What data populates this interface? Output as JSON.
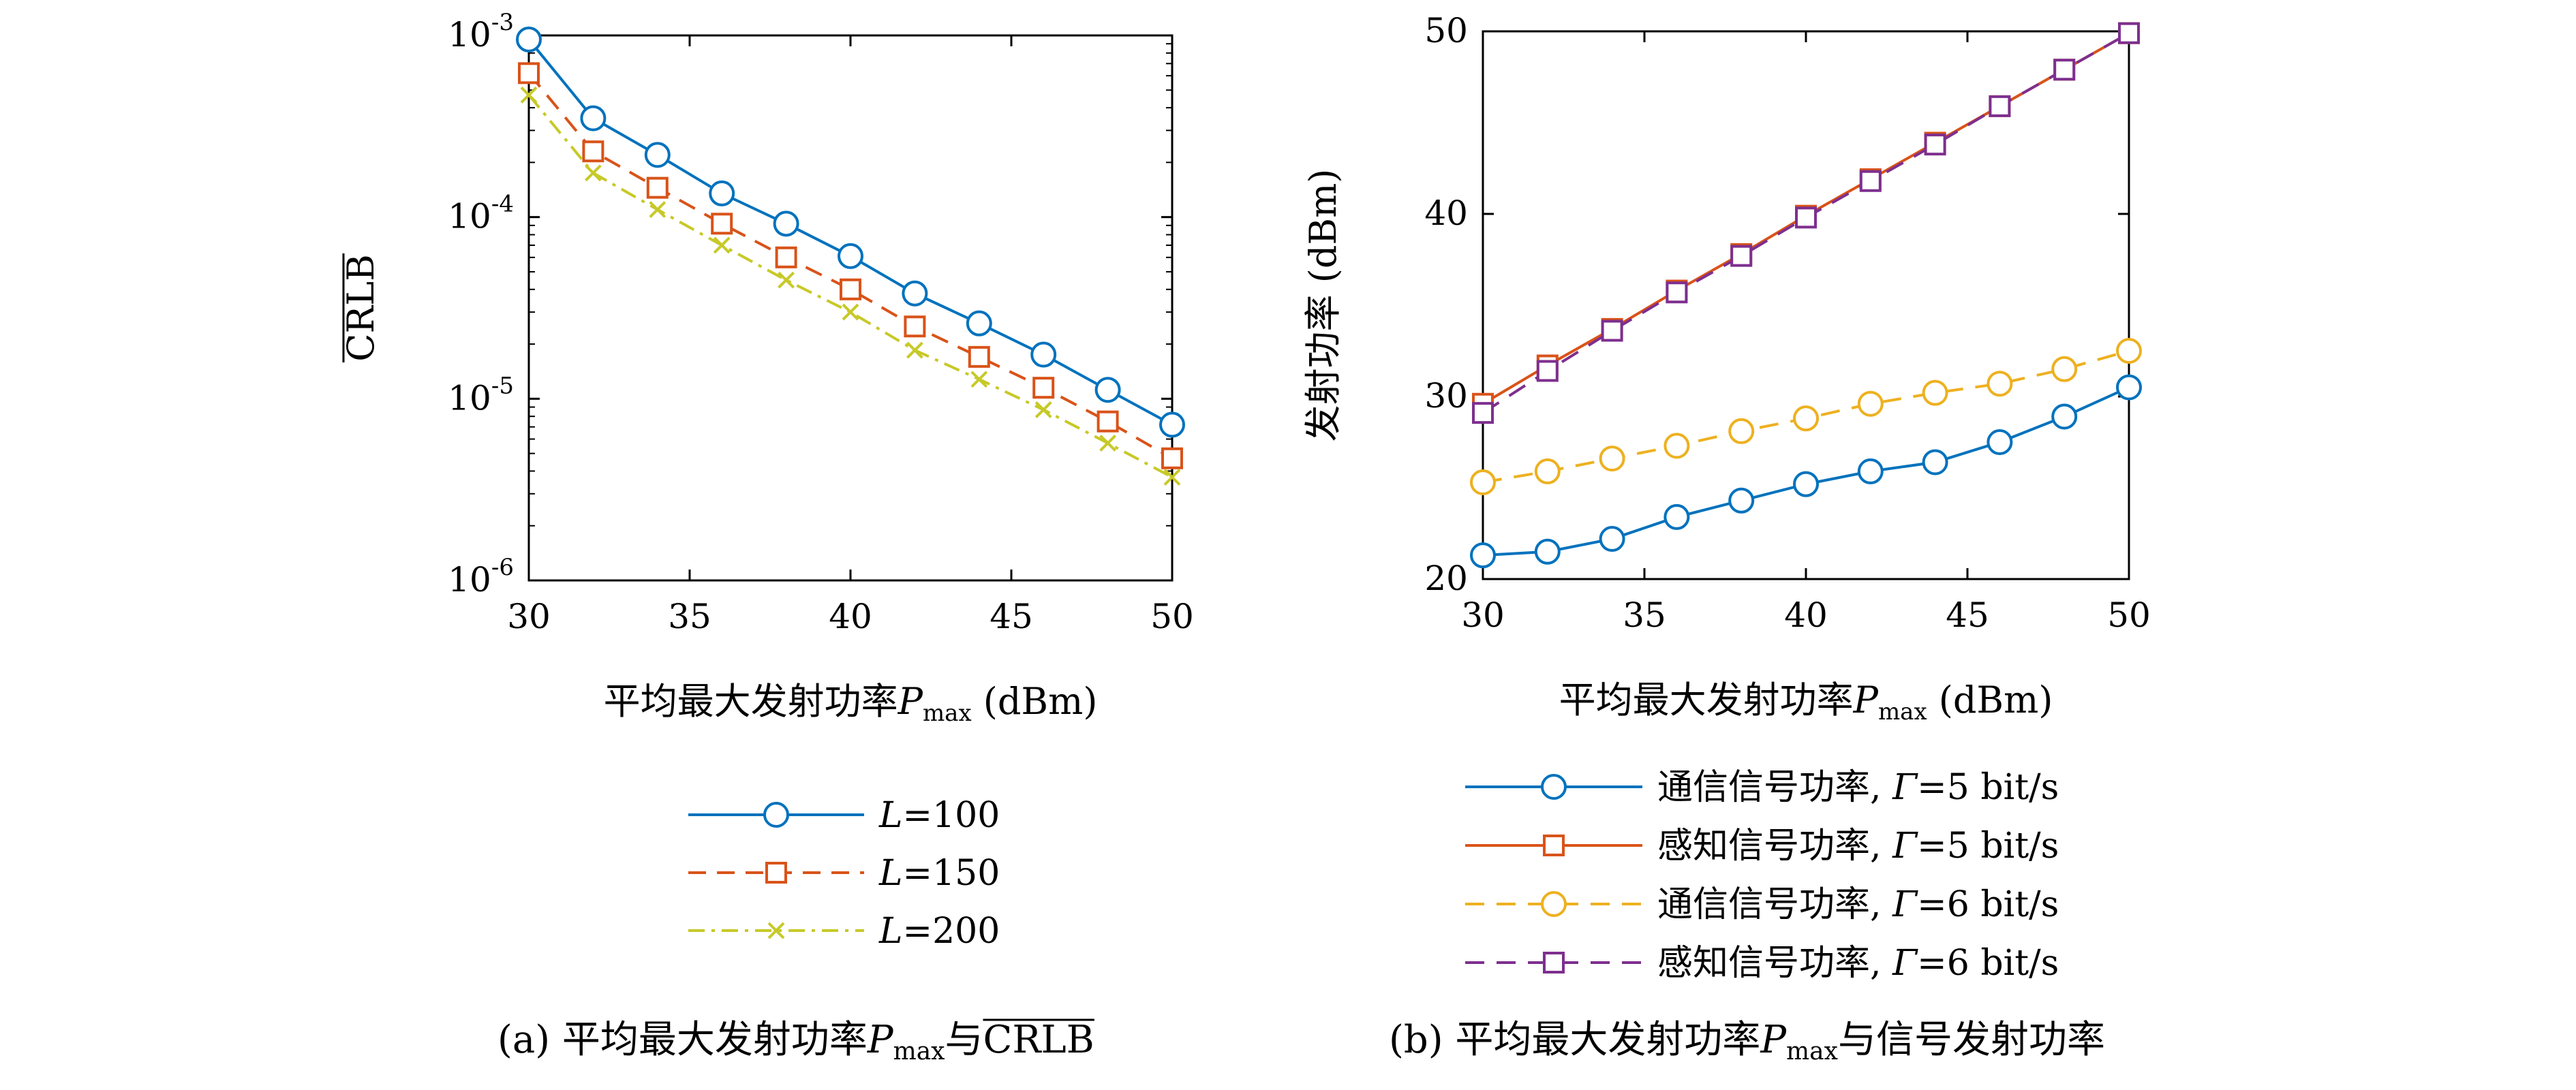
{
  "chart_data": [
    {
      "type": "line",
      "id": "a",
      "caption": {
        "tag": "(a)",
        "text": "平均最大发射功率",
        "var": "P",
        "sub": "max",
        "mid": "与",
        "end": "CRLB"
      },
      "xlabel": {
        "text": "平均最大发射功率",
        "var": "P",
        "sub": "max",
        "unit": "(dBm)"
      },
      "ylabel": "CRLB",
      "y_scale": "log",
      "xlim": [
        30,
        50
      ],
      "ylim": [
        1e-06,
        0.001
      ],
      "x_ticks": [
        30,
        35,
        40,
        45,
        50
      ],
      "y_ticks": [
        {
          "value": 0.001,
          "base": "10",
          "exp": "-3"
        },
        {
          "value": 0.0001,
          "base": "10",
          "exp": "-4"
        },
        {
          "value": 1e-05,
          "base": "10",
          "exp": "-5"
        },
        {
          "value": 1e-06,
          "base": "10",
          "exp": "-6"
        }
      ],
      "grid": false,
      "legend_position": "below",
      "x": [
        30,
        32,
        34,
        36,
        38,
        40,
        42,
        44,
        46,
        48,
        50
      ],
      "series": [
        {
          "name": "L=100",
          "label_var": "L",
          "label_rest": "=100",
          "color": "#0072bd",
          "dash": "",
          "marker": "circle",
          "values": [
            0.00095,
            0.00035,
            0.00022,
            0.000135,
            9.2e-05,
            6.1e-05,
            3.8e-05,
            2.6e-05,
            1.75e-05,
            1.12e-05,
            7.2e-06
          ]
        },
        {
          "name": "L=150",
          "label_var": "L",
          "label_rest": "=150",
          "color": "#d95319",
          "dash": "26,16",
          "marker": "square",
          "values": [
            0.00062,
            0.00023,
            0.000145,
            9.2e-05,
            6e-05,
            4e-05,
            2.5e-05,
            1.7e-05,
            1.15e-05,
            7.5e-06,
            4.7e-06
          ]
        },
        {
          "name": "L=200",
          "label_var": "L",
          "label_rest": "=200",
          "color": "#c7c928",
          "dash": "24,10,5,10",
          "marker": "x",
          "values": [
            0.00047,
            0.000175,
            0.00011,
            7e-05,
            4.5e-05,
            3e-05,
            1.85e-05,
            1.28e-05,
            8.7e-06,
            5.7e-06,
            3.7e-06
          ]
        }
      ]
    },
    {
      "type": "line",
      "id": "b",
      "caption": {
        "tag": "(b)",
        "text": "平均最大发射功率",
        "var": "P",
        "sub": "max",
        "mid": "与信号发射功率",
        "end": ""
      },
      "xlabel": {
        "text": "平均最大发射功率",
        "var": "P",
        "sub": "max",
        "unit": "(dBm)"
      },
      "ylabel": "发射功率 (dBm)",
      "y_scale": "linear",
      "xlim": [
        30,
        50
      ],
      "ylim": [
        20,
        50
      ],
      "x_ticks": [
        30,
        35,
        40,
        45,
        50
      ],
      "y_ticks": [
        20,
        30,
        40,
        50
      ],
      "grid": false,
      "legend_position": "below",
      "x": [
        30,
        32,
        34,
        36,
        38,
        40,
        42,
        44,
        46,
        48,
        50
      ],
      "series": [
        {
          "name": "通信信号功率, Γ=5 bit/s",
          "label_text": "通信信号功率, ",
          "label_var": "Γ",
          "label_rest": "=5 bit/s",
          "color": "#0072bd",
          "dash": "",
          "marker": "circle",
          "values": [
            21.3,
            21.5,
            22.2,
            23.4,
            24.3,
            25.2,
            25.9,
            26.4,
            27.5,
            28.9,
            30.5
          ]
        },
        {
          "name": "感知信号功率, Γ=5 bit/s",
          "label_text": "感知信号功率, ",
          "label_var": "Γ",
          "label_rest": "=5 bit/s",
          "color": "#d95319",
          "dash": "",
          "marker": "square",
          "values": [
            29.6,
            31.7,
            33.7,
            35.8,
            37.8,
            39.9,
            41.9,
            43.9,
            45.9,
            47.9,
            49.9
          ]
        },
        {
          "name": "通信信号功率, Γ=6 bit/s",
          "label_text": "通信信号功率, ",
          "label_var": "Γ",
          "label_rest": "=6 bit/s",
          "color": "#edb120",
          "dash": "28,18",
          "marker": "circle",
          "values": [
            25.3,
            25.9,
            26.6,
            27.3,
            28.1,
            28.8,
            29.6,
            30.2,
            30.7,
            31.5,
            32.5
          ]
        },
        {
          "name": "感知信号功率, Γ=6 bit/s",
          "label_text": "感知信号功率, ",
          "label_var": "Γ",
          "label_rest": "=6 bit/s",
          "color": "#7e2f8e",
          "dash": "28,18",
          "marker": "square",
          "values": [
            29.1,
            31.4,
            33.6,
            35.7,
            37.7,
            39.8,
            41.8,
            43.8,
            45.9,
            47.9,
            49.9
          ]
        }
      ]
    }
  ]
}
